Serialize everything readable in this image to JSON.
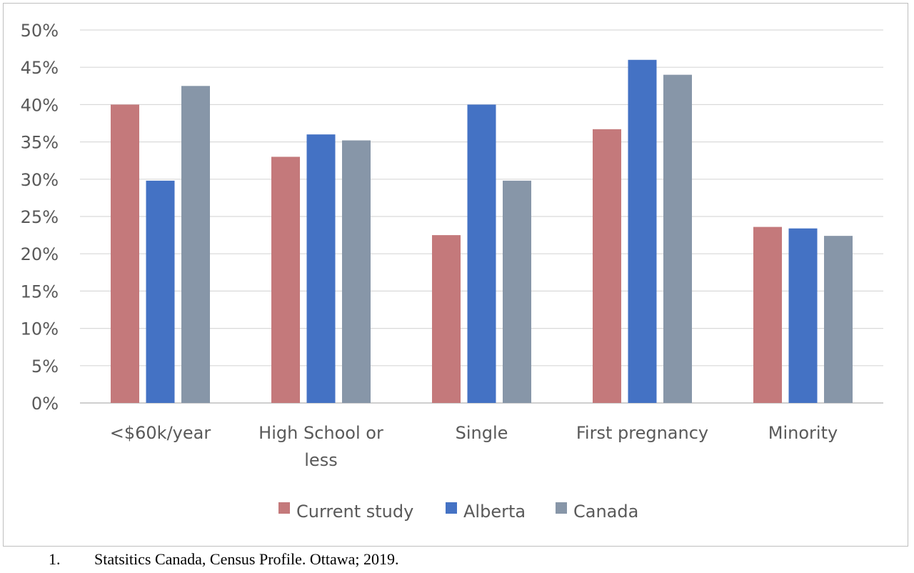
{
  "chart_data": {
    "type": "bar",
    "categories": [
      [
        "<$60k/year"
      ],
      [
        "High School or",
        "less"
      ],
      [
        "Single"
      ],
      [
        "First pregnancy"
      ],
      [
        "Minority"
      ]
    ],
    "series": [
      {
        "name": "Current study",
        "color": "#c4797b",
        "values": [
          40,
          33,
          22.5,
          36.7,
          23.6
        ]
      },
      {
        "name": "Alberta",
        "color": "#4472c4",
        "values": [
          29.8,
          36,
          40,
          46,
          23.4
        ]
      },
      {
        "name": "Canada",
        "color": "#8796a8",
        "values": [
          42.5,
          35.2,
          29.8,
          44,
          22.4
        ]
      }
    ],
    "y_ticks": [
      "0%",
      "5%",
      "10%",
      "15%",
      "20%",
      "25%",
      "30%",
      "35%",
      "40%",
      "45%",
      "50%"
    ],
    "ylim": [
      0,
      50
    ],
    "grid": true,
    "legend_position": "bottom"
  },
  "footnote": {
    "number": "1.",
    "text": "Statsitics Canada, Census Profile. Ottawa; 2019."
  }
}
